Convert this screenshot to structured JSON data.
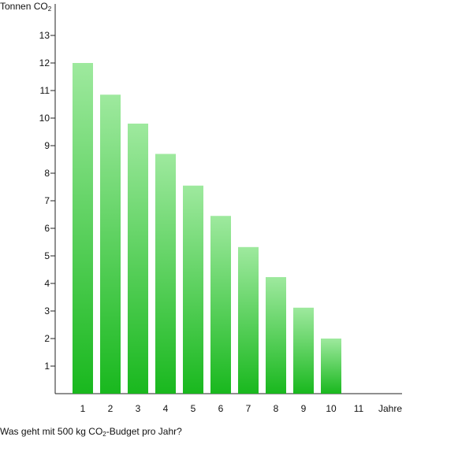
{
  "chart_data": {
    "type": "bar",
    "categories": [
      "1",
      "2",
      "3",
      "4",
      "5",
      "6",
      "7",
      "8",
      "9",
      "10",
      "11"
    ],
    "values": [
      12.0,
      10.85,
      9.8,
      8.7,
      7.55,
      6.45,
      5.32,
      4.23,
      3.12,
      2.0,
      0
    ],
    "ylim": [
      0,
      14
    ],
    "yticks": [
      1,
      2,
      3,
      4,
      5,
      6,
      7,
      8,
      9,
      10,
      11,
      12,
      13
    ],
    "ylabel": {
      "main": "Tonnen CO",
      "sub": "2"
    },
    "xlabel": "Jahre",
    "caption": {
      "before": "Was geht mit 500 kg CO",
      "sub": "2",
      "after": "-Budget pro Jahr?"
    },
    "grid": false,
    "colors": {
      "bar_top": "#9ee99e",
      "bar_bottom": "#19b81e",
      "axis": "#222222"
    }
  }
}
